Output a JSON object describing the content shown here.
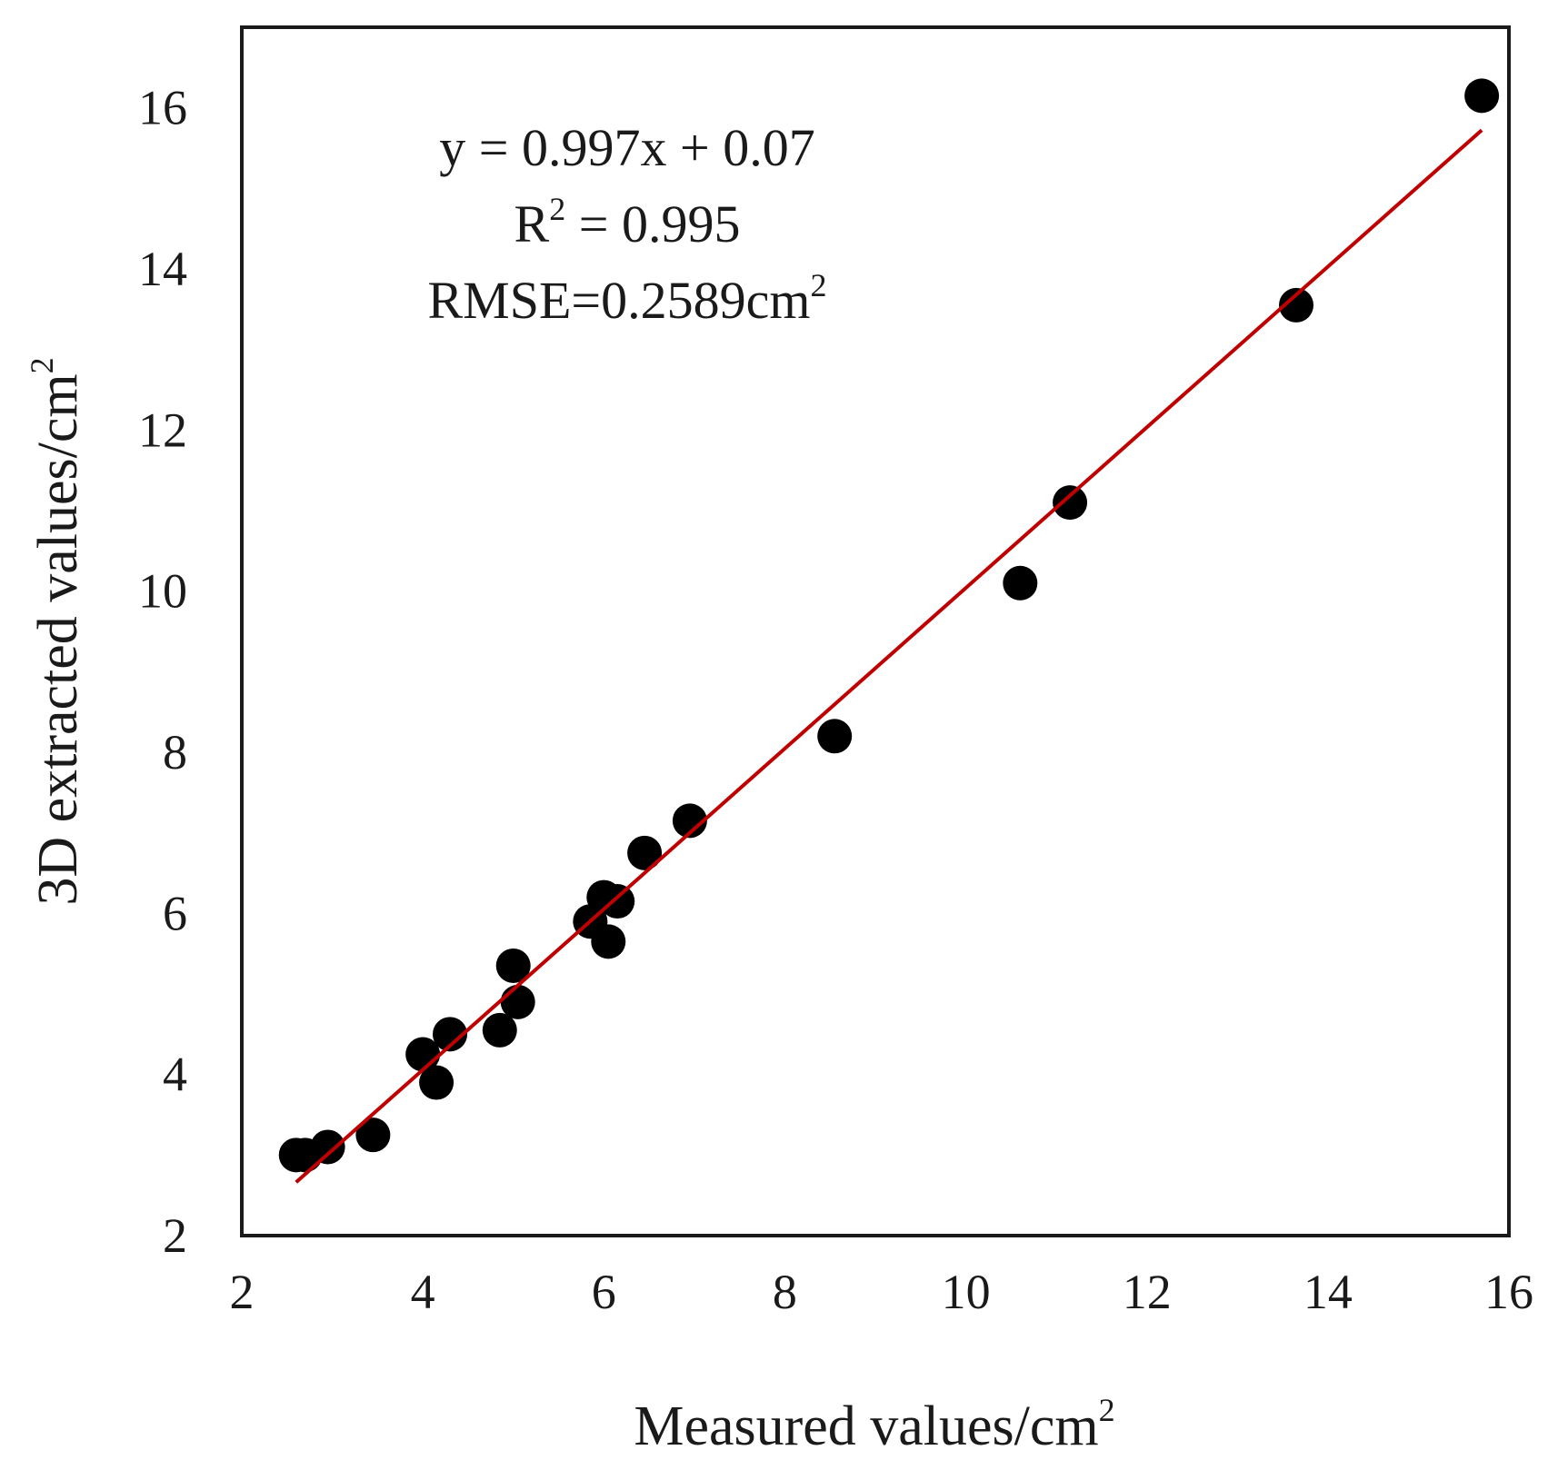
{
  "chart_data": {
    "type": "scatter",
    "title": "",
    "xlabel": "Measured values/cm",
    "xlabel_sup": "2",
    "ylabel": "3D extracted values/cm",
    "ylabel_sup": "2",
    "xlim": [
      2,
      16
    ],
    "ylim": [
      2,
      17
    ],
    "x_ticks": [
      2,
      4,
      6,
      8,
      10,
      12,
      14,
      16
    ],
    "y_ticks": [
      2,
      4,
      6,
      8,
      10,
      12,
      14,
      16
    ],
    "x_tick_labels": [
      "2",
      "4",
      "6",
      "8",
      "10",
      "12",
      "14",
      "16"
    ],
    "y_tick_labels": [
      "2",
      "4",
      "6",
      "8",
      "10",
      "12",
      "14",
      "16"
    ],
    "grid": false,
    "legend": "none",
    "series": [
      {
        "name": "samples",
        "color": "#000000",
        "points": [
          [
            2.6,
            3.0
          ],
          [
            2.7,
            3.0
          ],
          [
            2.95,
            3.1
          ],
          [
            3.45,
            3.25
          ],
          [
            4.0,
            4.25
          ],
          [
            4.15,
            3.9
          ],
          [
            4.3,
            4.5
          ],
          [
            4.85,
            4.55
          ],
          [
            5.0,
            5.35
          ],
          [
            5.05,
            4.9
          ],
          [
            5.85,
            5.9
          ],
          [
            6.0,
            6.2
          ],
          [
            6.05,
            5.65
          ],
          [
            6.15,
            6.15
          ],
          [
            6.45,
            6.75
          ],
          [
            6.95,
            7.15
          ],
          [
            8.55,
            8.2
          ],
          [
            10.6,
            10.1
          ],
          [
            11.15,
            11.1
          ],
          [
            13.65,
            13.55
          ],
          [
            15.7,
            16.15
          ]
        ]
      }
    ],
    "fit_line": {
      "slope": 0.997,
      "intercept": 0.07,
      "x_range": [
        2.6,
        15.7
      ],
      "color": "#c00000"
    },
    "annotations": {
      "equation": "y = 0.997x + 0.07",
      "r2_prefix": "R",
      "r2_sup": "2",
      "r2_suffix": " = 0.995",
      "rmse_text": "RMSE=0.2589cm",
      "rmse_sup": "2"
    }
  }
}
